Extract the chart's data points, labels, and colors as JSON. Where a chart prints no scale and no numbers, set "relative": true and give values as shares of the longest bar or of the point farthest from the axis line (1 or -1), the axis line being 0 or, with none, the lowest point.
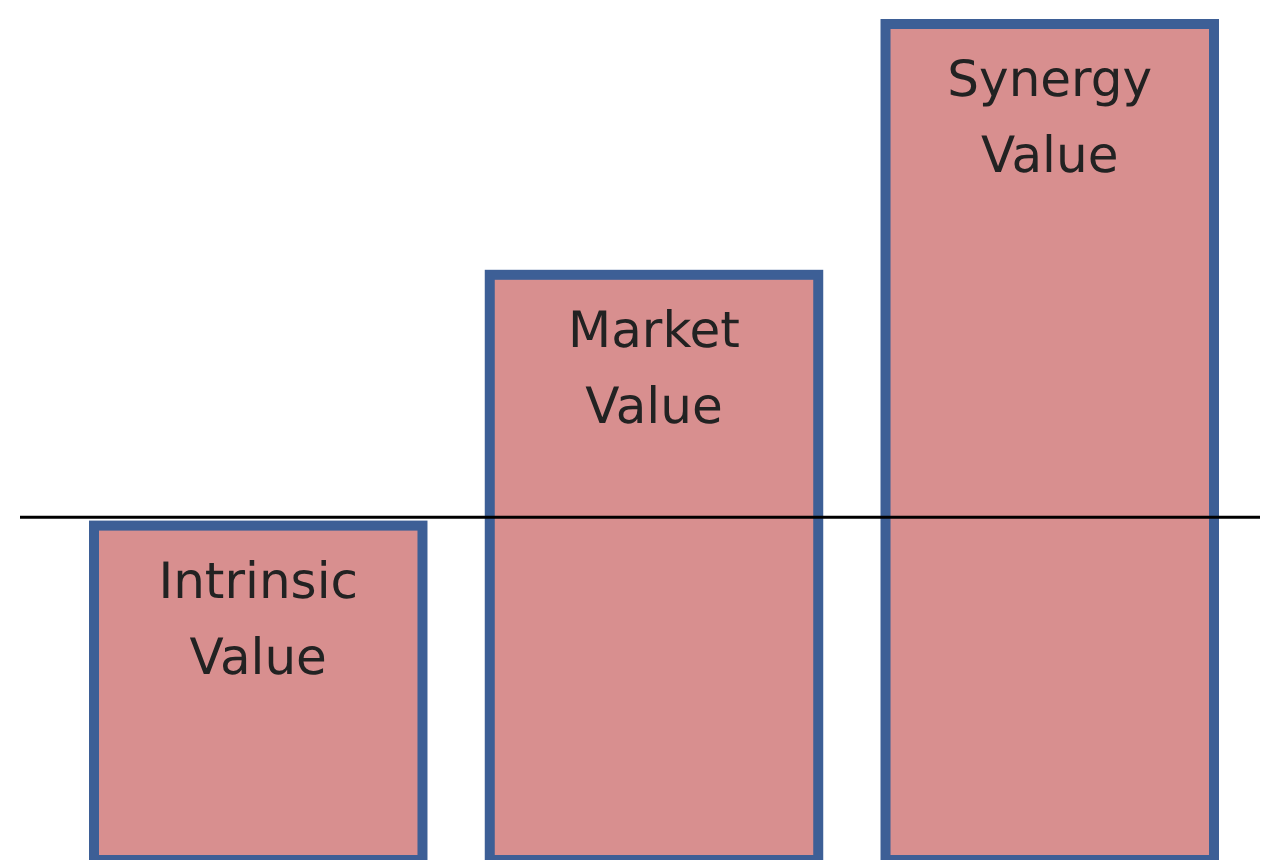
{
  "chart_data": {
    "type": "bar",
    "relative": true,
    "categories": [
      "Intrinsic Value",
      "Market Value",
      "Synergy Value"
    ],
    "values": [
      0.4,
      0.7,
      1
    ],
    "color": "#d88f8f",
    "ref_lines": [
      {
        "axis": "y",
        "value": 0.41,
        "color": "#000000"
      }
    ]
  }
}
